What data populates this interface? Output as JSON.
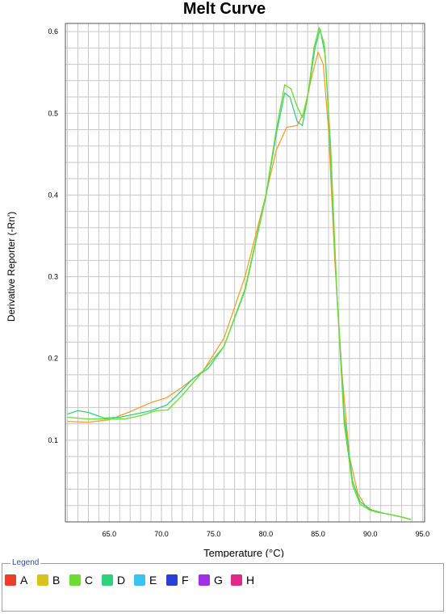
{
  "chart_data": {
    "type": "line",
    "title": "Melt Curve",
    "xlabel": "Temperature (°C)",
    "ylabel": "Derivative Reporter (-Rn')",
    "xlim": [
      60.8,
      95.2
    ],
    "ylim": [
      0,
      0.61
    ],
    "x_ticks": [
      65.0,
      70.0,
      75.0,
      80.0,
      85.0,
      90.0,
      95.0
    ],
    "x_tick_labels": [
      "65.0",
      "70.0",
      "75.0",
      "80.0",
      "85.0",
      "90.0",
      "95.0"
    ],
    "y_ticks": [
      0.1,
      0.2,
      0.3,
      0.4,
      0.5,
      0.6
    ],
    "y_tick_labels": [
      "0.1",
      "0.2",
      "0.3",
      "0.4",
      "0.5",
      "0.6"
    ],
    "grid": true,
    "legend_placement": "bottom",
    "series": [
      {
        "color": "#f0a030",
        "points": [
          [
            61,
            0.123
          ],
          [
            63,
            0.122
          ],
          [
            65,
            0.125
          ],
          [
            67,
            0.135
          ],
          [
            69,
            0.146
          ],
          [
            70.5,
            0.152
          ],
          [
            72,
            0.165
          ],
          [
            74,
            0.185
          ],
          [
            76,
            0.225
          ],
          [
            78,
            0.3
          ],
          [
            80,
            0.4
          ],
          [
            81,
            0.455
          ],
          [
            82,
            0.483
          ],
          [
            83,
            0.485
          ],
          [
            83.6,
            0.5
          ],
          [
            84.4,
            0.545
          ],
          [
            85,
            0.575
          ],
          [
            85.5,
            0.56
          ],
          [
            86,
            0.48
          ],
          [
            86.6,
            0.32
          ],
          [
            87.3,
            0.18
          ],
          [
            88,
            0.08
          ],
          [
            88.8,
            0.035
          ],
          [
            89.5,
            0.02
          ],
          [
            90.5,
            0.012
          ],
          [
            92,
            0.009
          ],
          [
            93.9,
            0.003
          ]
        ]
      },
      {
        "color": "#2fd27a",
        "points": [
          [
            61,
            0.132
          ],
          [
            62,
            0.136
          ],
          [
            63,
            0.134
          ],
          [
            64.5,
            0.127
          ],
          [
            66,
            0.128
          ],
          [
            67.5,
            0.132
          ],
          [
            69,
            0.136
          ],
          [
            70.5,
            0.143
          ],
          [
            71.5,
            0.155
          ],
          [
            73,
            0.175
          ],
          [
            74.5,
            0.188
          ],
          [
            76,
            0.215
          ],
          [
            78,
            0.283
          ],
          [
            80,
            0.398
          ],
          [
            81,
            0.475
          ],
          [
            81.8,
            0.525
          ],
          [
            82.3,
            0.52
          ],
          [
            83,
            0.49
          ],
          [
            83.5,
            0.485
          ],
          [
            84,
            0.52
          ],
          [
            84.7,
            0.58
          ],
          [
            85.2,
            0.603
          ],
          [
            85.7,
            0.57
          ],
          [
            86.2,
            0.45
          ],
          [
            86.8,
            0.28
          ],
          [
            87.5,
            0.13
          ],
          [
            88.3,
            0.05
          ],
          [
            89,
            0.025
          ],
          [
            90,
            0.015
          ],
          [
            91.5,
            0.01
          ],
          [
            93,
            0.006
          ],
          [
            93.9,
            0.003
          ]
        ]
      },
      {
        "color": "#6cdc30",
        "points": [
          [
            61,
            0.128
          ],
          [
            63,
            0.126
          ],
          [
            65,
            0.126
          ],
          [
            66.5,
            0.126
          ],
          [
            68,
            0.13
          ],
          [
            69.5,
            0.136
          ],
          [
            70.6,
            0.137
          ],
          [
            72,
            0.155
          ],
          [
            74,
            0.185
          ],
          [
            76,
            0.215
          ],
          [
            78,
            0.285
          ],
          [
            80,
            0.4
          ],
          [
            81,
            0.48
          ],
          [
            81.8,
            0.535
          ],
          [
            82.4,
            0.53
          ],
          [
            83,
            0.508
          ],
          [
            83.5,
            0.495
          ],
          [
            84,
            0.52
          ],
          [
            84.6,
            0.58
          ],
          [
            85.1,
            0.605
          ],
          [
            85.6,
            0.585
          ],
          [
            86.2,
            0.46
          ],
          [
            86.8,
            0.28
          ],
          [
            87.5,
            0.12
          ],
          [
            88.3,
            0.045
          ],
          [
            89,
            0.022
          ],
          [
            90,
            0.014
          ],
          [
            91.5,
            0.01
          ],
          [
            93,
            0.006
          ],
          [
            93.9,
            0.003
          ]
        ]
      }
    ]
  },
  "legend": {
    "title": "Legend",
    "items": [
      {
        "label": "A",
        "color": "#e8402c"
      },
      {
        "label": "B",
        "color": "#d8c21c"
      },
      {
        "label": "C",
        "color": "#6cdc30"
      },
      {
        "label": "D",
        "color": "#2fd27a"
      },
      {
        "label": "E",
        "color": "#38c4ee"
      },
      {
        "label": "F",
        "color": "#2a3fd8"
      },
      {
        "label": "G",
        "color": "#a030e8"
      },
      {
        "label": "H",
        "color": "#e02a8a"
      }
    ]
  }
}
